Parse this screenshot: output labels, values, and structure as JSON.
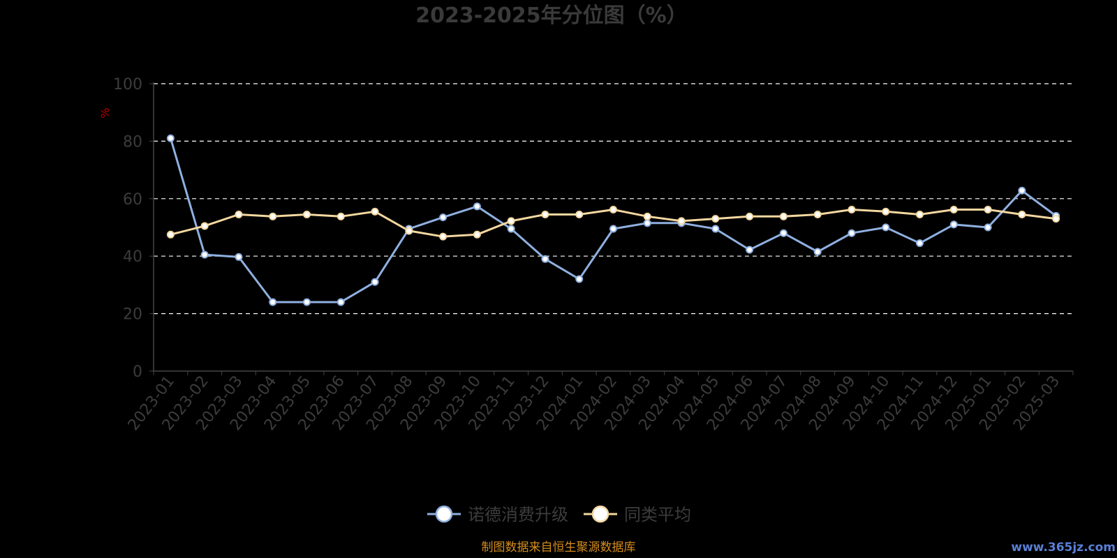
{
  "chart_data": {
    "type": "line",
    "title": "2023-2025年分位图（%）",
    "ylabel": "%",
    "ylim": [
      0,
      100
    ],
    "yticks": [
      0,
      20,
      40,
      60,
      80,
      100
    ],
    "grid": true,
    "legend_position": "bottom-center",
    "categories": [
      "2023-01",
      "2023-02",
      "2023-03",
      "2023-04",
      "2023-05",
      "2023-06",
      "2023-07",
      "2023-08",
      "2023-09",
      "2023-10",
      "2023-11",
      "2023-12",
      "2024-01",
      "2024-02",
      "2024-03",
      "2024-04",
      "2024-05",
      "2024-06",
      "2024-07",
      "2024-08",
      "2024-09",
      "2024-10",
      "2024-11",
      "2024-12",
      "2025-01",
      "2025-02",
      "2025-03"
    ],
    "series": [
      {
        "name": "诺德消费升级",
        "color": "#8fb0e0",
        "values": [
          81,
          40.5,
          39.7,
          24,
          24,
          24,
          31,
          49.5,
          53.5,
          57.3,
          49.5,
          39,
          32,
          49.5,
          51.5,
          51.5,
          49.5,
          42.2,
          48,
          41.5,
          48,
          50,
          44.5,
          51,
          50,
          62.8,
          54
        ]
      },
      {
        "name": "同类平均",
        "color": "#f3d7a0",
        "values": [
          47.5,
          50.5,
          54.5,
          53.8,
          54.5,
          53.8,
          55.5,
          48.8,
          46.8,
          47.5,
          52.2,
          54.5,
          54.5,
          56.2,
          53.8,
          52.2,
          53,
          53.8,
          53.8,
          54.5,
          56.2,
          55.5,
          54.5,
          56.2,
          56.2,
          54.5,
          53
        ]
      }
    ]
  },
  "footer": {
    "source": "制图数据来自恒生聚源数据库",
    "watermark": "www.365jz.com"
  }
}
